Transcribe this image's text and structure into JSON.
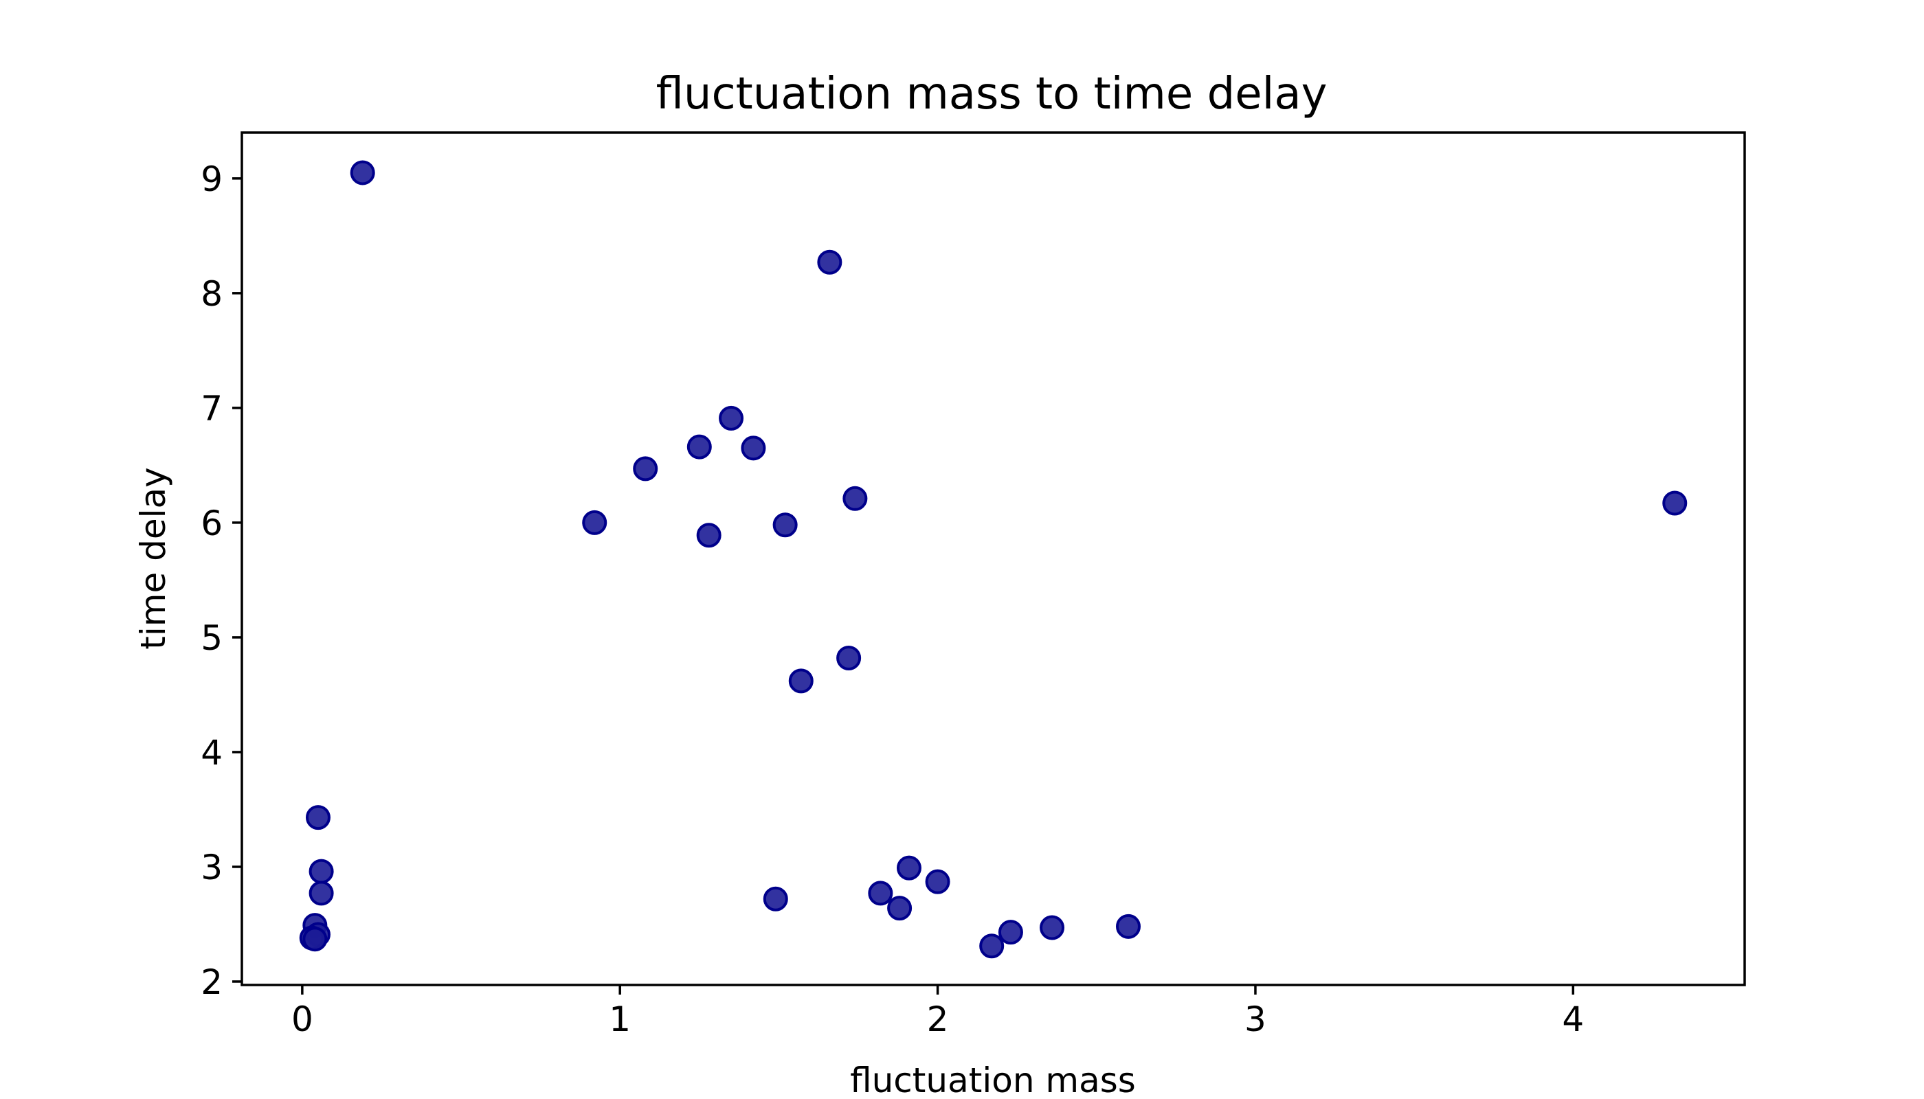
{
  "chart_data": {
    "type": "scatter",
    "title": "fluctuation mass to time delay",
    "xlabel": "fluctuation mass",
    "ylabel": "time delay",
    "xlim": [
      -0.19,
      4.54
    ],
    "ylim": [
      1.97,
      9.4
    ],
    "xticks": [
      0,
      1,
      2,
      3,
      4
    ],
    "yticks": [
      2,
      3,
      4,
      5,
      6,
      7,
      8,
      9
    ],
    "grid": false,
    "marker_color": "#1c1c96",
    "marker_edge_color": "#00008b",
    "points": [
      {
        "x": 0.19,
        "y": 9.05
      },
      {
        "x": 1.66,
        "y": 8.27
      },
      {
        "x": 1.35,
        "y": 6.91
      },
      {
        "x": 1.25,
        "y": 6.66
      },
      {
        "x": 1.42,
        "y": 6.65
      },
      {
        "x": 1.08,
        "y": 6.47
      },
      {
        "x": 1.74,
        "y": 6.21
      },
      {
        "x": 4.32,
        "y": 6.17
      },
      {
        "x": 0.92,
        "y": 6.0
      },
      {
        "x": 1.52,
        "y": 5.98
      },
      {
        "x": 1.28,
        "y": 5.89
      },
      {
        "x": 1.72,
        "y": 4.82
      },
      {
        "x": 1.57,
        "y": 4.62
      },
      {
        "x": 0.05,
        "y": 3.43
      },
      {
        "x": 1.91,
        "y": 2.99
      },
      {
        "x": 0.06,
        "y": 2.96
      },
      {
        "x": 2.0,
        "y": 2.87
      },
      {
        "x": 0.06,
        "y": 2.77
      },
      {
        "x": 1.82,
        "y": 2.77
      },
      {
        "x": 1.49,
        "y": 2.72
      },
      {
        "x": 1.88,
        "y": 2.64
      },
      {
        "x": 0.04,
        "y": 2.49
      },
      {
        "x": 2.6,
        "y": 2.48
      },
      {
        "x": 2.36,
        "y": 2.47
      },
      {
        "x": 2.23,
        "y": 2.43
      },
      {
        "x": 0.05,
        "y": 2.41
      },
      {
        "x": 0.03,
        "y": 2.38
      },
      {
        "x": 0.04,
        "y": 2.37
      },
      {
        "x": 2.17,
        "y": 2.31
      }
    ]
  }
}
